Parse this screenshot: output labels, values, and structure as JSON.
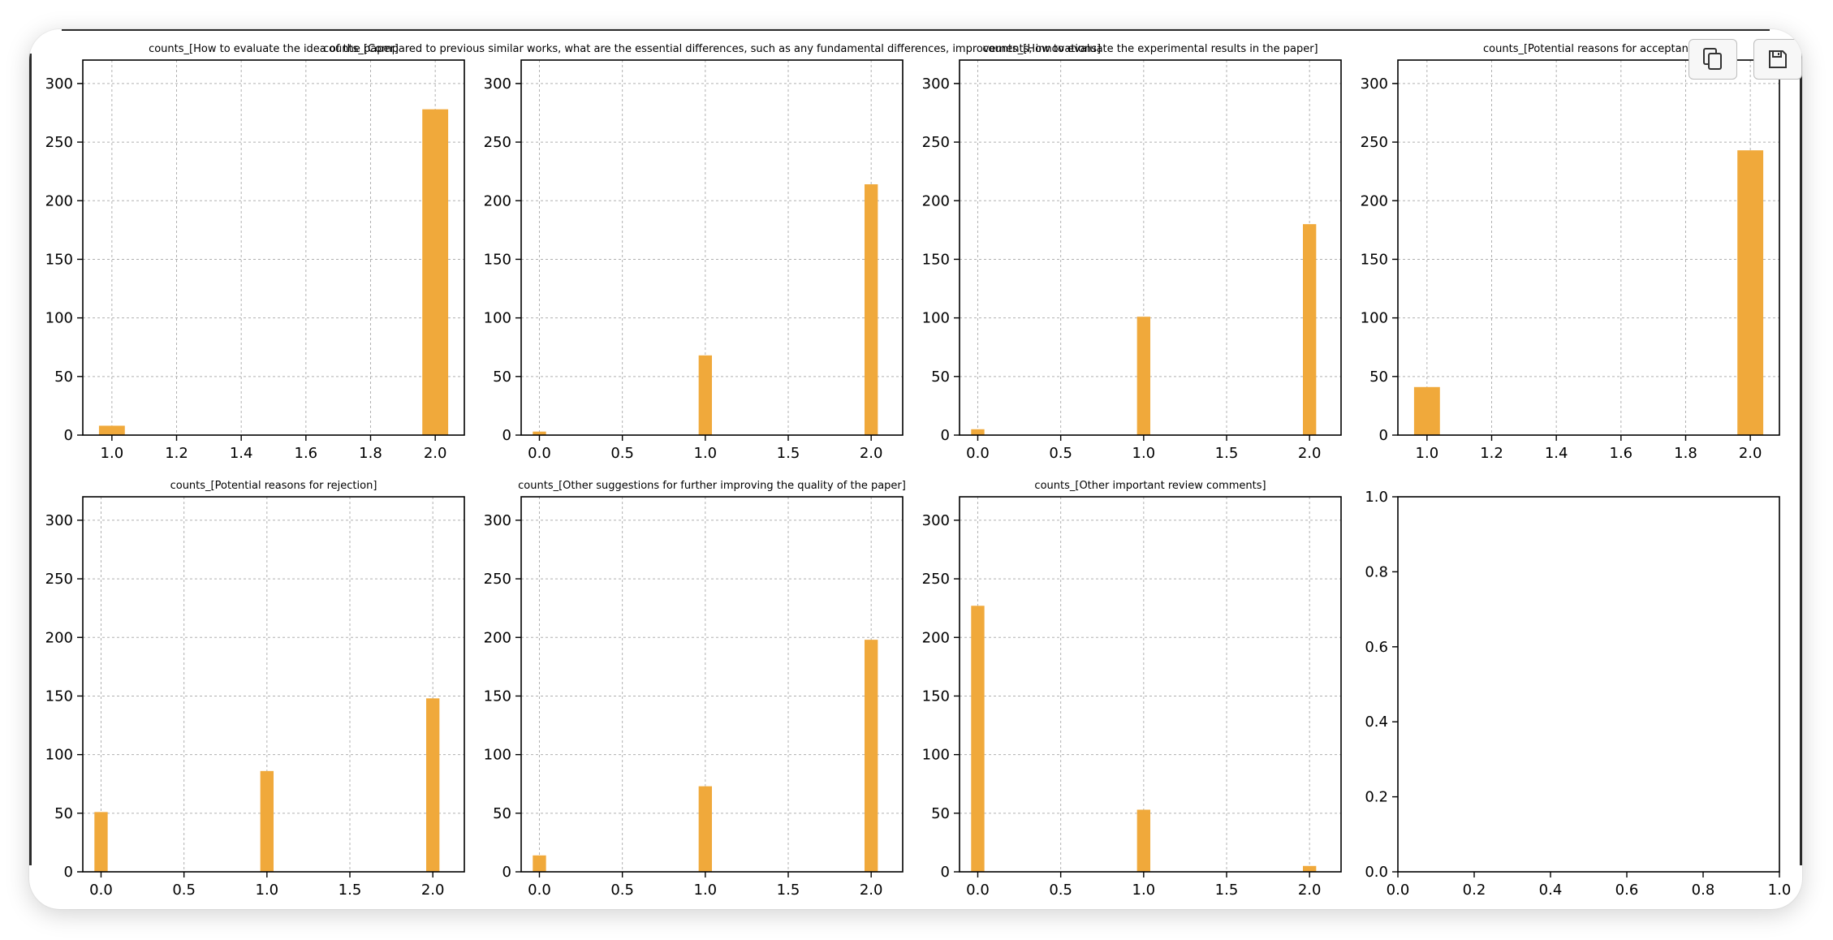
{
  "toolbar": {
    "copy_icon": "copy-icon",
    "save_icon": "save-icon"
  },
  "colors": {
    "bar": "#F0A93B",
    "axis": "#000000",
    "grid": "#b0b0b0"
  },
  "chart_data": [
    {
      "type": "bar",
      "title": "counts_[How to evaluate the idea of the paper]",
      "x": [
        1.0,
        2.0
      ],
      "values": [
        8,
        278
      ],
      "xlim": [
        0.91,
        2.09
      ],
      "ylim": [
        0,
        320
      ],
      "xticks": [
        "1.0",
        "1.2",
        "1.4",
        "1.6",
        "1.8",
        "2.0"
      ],
      "xtick_values": [
        1.0,
        1.2,
        1.4,
        1.6,
        1.8,
        2.0
      ],
      "yticks": [
        "0",
        "50",
        "100",
        "150",
        "200",
        "250",
        "300"
      ],
      "ytick_values": [
        0,
        50,
        100,
        150,
        200,
        250,
        300
      ],
      "bar_width": 0.08,
      "grid": true
    },
    {
      "type": "bar",
      "title": "counts_[Compared to previous similar works, what are the essential differences, such as any fundamental differences, improvements, innovations]",
      "x": [
        0.0,
        1.0,
        2.0
      ],
      "values": [
        3,
        68,
        214
      ],
      "xlim": [
        -0.11,
        2.19
      ],
      "ylim": [
        0,
        320
      ],
      "xticks": [
        "0.0",
        "0.5",
        "1.0",
        "1.5",
        "2.0"
      ],
      "xtick_values": [
        0.0,
        0.5,
        1.0,
        1.5,
        2.0
      ],
      "yticks": [
        "0",
        "50",
        "100",
        "150",
        "200",
        "250",
        "300"
      ],
      "ytick_values": [
        0,
        50,
        100,
        150,
        200,
        250,
        300
      ],
      "bar_width": 0.08,
      "grid": true
    },
    {
      "type": "bar",
      "title": "counts_[How to evaluate the experimental results in the paper]",
      "x": [
        0.0,
        1.0,
        2.0
      ],
      "values": [
        5,
        101,
        180
      ],
      "xlim": [
        -0.11,
        2.19
      ],
      "ylim": [
        0,
        320
      ],
      "xticks": [
        "0.0",
        "0.5",
        "1.0",
        "1.5",
        "2.0"
      ],
      "xtick_values": [
        0.0,
        0.5,
        1.0,
        1.5,
        2.0
      ],
      "yticks": [
        "0",
        "50",
        "100",
        "150",
        "200",
        "250",
        "300"
      ],
      "ytick_values": [
        0,
        50,
        100,
        150,
        200,
        250,
        300
      ],
      "bar_width": 0.08,
      "grid": true
    },
    {
      "type": "bar",
      "title": "counts_[Potential reasons for acceptanc",
      "x": [
        1.0,
        2.0
      ],
      "values": [
        41,
        243
      ],
      "xlim": [
        0.91,
        2.09
      ],
      "ylim": [
        0,
        320
      ],
      "xticks": [
        "1.0",
        "1.2",
        "1.4",
        "1.6",
        "1.8",
        "2.0"
      ],
      "xtick_values": [
        1.0,
        1.2,
        1.4,
        1.6,
        1.8,
        2.0
      ],
      "yticks": [
        "0",
        "50",
        "100",
        "150",
        "200",
        "250",
        "300"
      ],
      "ytick_values": [
        0,
        50,
        100,
        150,
        200,
        250,
        300
      ],
      "bar_width": 0.08,
      "grid": true
    },
    {
      "type": "bar",
      "title": "counts_[Potential reasons for rejection]",
      "x": [
        0.0,
        1.0,
        2.0
      ],
      "values": [
        51,
        86,
        148
      ],
      "xlim": [
        -0.11,
        2.19
      ],
      "ylim": [
        0,
        320
      ],
      "xticks": [
        "0.0",
        "0.5",
        "1.0",
        "1.5",
        "2.0"
      ],
      "xtick_values": [
        0.0,
        0.5,
        1.0,
        1.5,
        2.0
      ],
      "yticks": [
        "0",
        "50",
        "100",
        "150",
        "200",
        "250",
        "300"
      ],
      "ytick_values": [
        0,
        50,
        100,
        150,
        200,
        250,
        300
      ],
      "bar_width": 0.08,
      "grid": true
    },
    {
      "type": "bar",
      "title": "counts_[Other suggestions for further improving the quality of the paper]",
      "x": [
        0.0,
        1.0,
        2.0
      ],
      "values": [
        14,
        73,
        198
      ],
      "xlim": [
        -0.11,
        2.19
      ],
      "ylim": [
        0,
        320
      ],
      "xticks": [
        "0.0",
        "0.5",
        "1.0",
        "1.5",
        "2.0"
      ],
      "xtick_values": [
        0.0,
        0.5,
        1.0,
        1.5,
        2.0
      ],
      "yticks": [
        "0",
        "50",
        "100",
        "150",
        "200",
        "250",
        "300"
      ],
      "ytick_values": [
        0,
        50,
        100,
        150,
        200,
        250,
        300
      ],
      "bar_width": 0.08,
      "grid": true
    },
    {
      "type": "bar",
      "title": "counts_[Other important review comments]",
      "x": [
        0.0,
        1.0,
        2.0
      ],
      "values": [
        227,
        53,
        5
      ],
      "xlim": [
        -0.11,
        2.19
      ],
      "ylim": [
        0,
        320
      ],
      "xticks": [
        "0.0",
        "0.5",
        "1.0",
        "1.5",
        "2.0"
      ],
      "xtick_values": [
        0.0,
        0.5,
        1.0,
        1.5,
        2.0
      ],
      "yticks": [
        "0",
        "50",
        "100",
        "150",
        "200",
        "250",
        "300"
      ],
      "ytick_values": [
        0,
        50,
        100,
        150,
        200,
        250,
        300
      ],
      "bar_width": 0.08,
      "grid": true
    },
    {
      "type": "bar",
      "title": "",
      "x": [],
      "values": [],
      "xlim": [
        0,
        1
      ],
      "ylim": [
        0,
        1
      ],
      "xticks": [
        "0.0",
        "0.2",
        "0.4",
        "0.6",
        "0.8",
        "1.0"
      ],
      "xtick_values": [
        0.0,
        0.2,
        0.4,
        0.6,
        0.8,
        1.0
      ],
      "yticks": [
        "0.0",
        "0.2",
        "0.4",
        "0.6",
        "0.8",
        "1.0"
      ],
      "ytick_values": [
        0.0,
        0.2,
        0.4,
        0.6,
        0.8,
        1.0
      ],
      "bar_width": 0.08,
      "grid": false
    }
  ]
}
